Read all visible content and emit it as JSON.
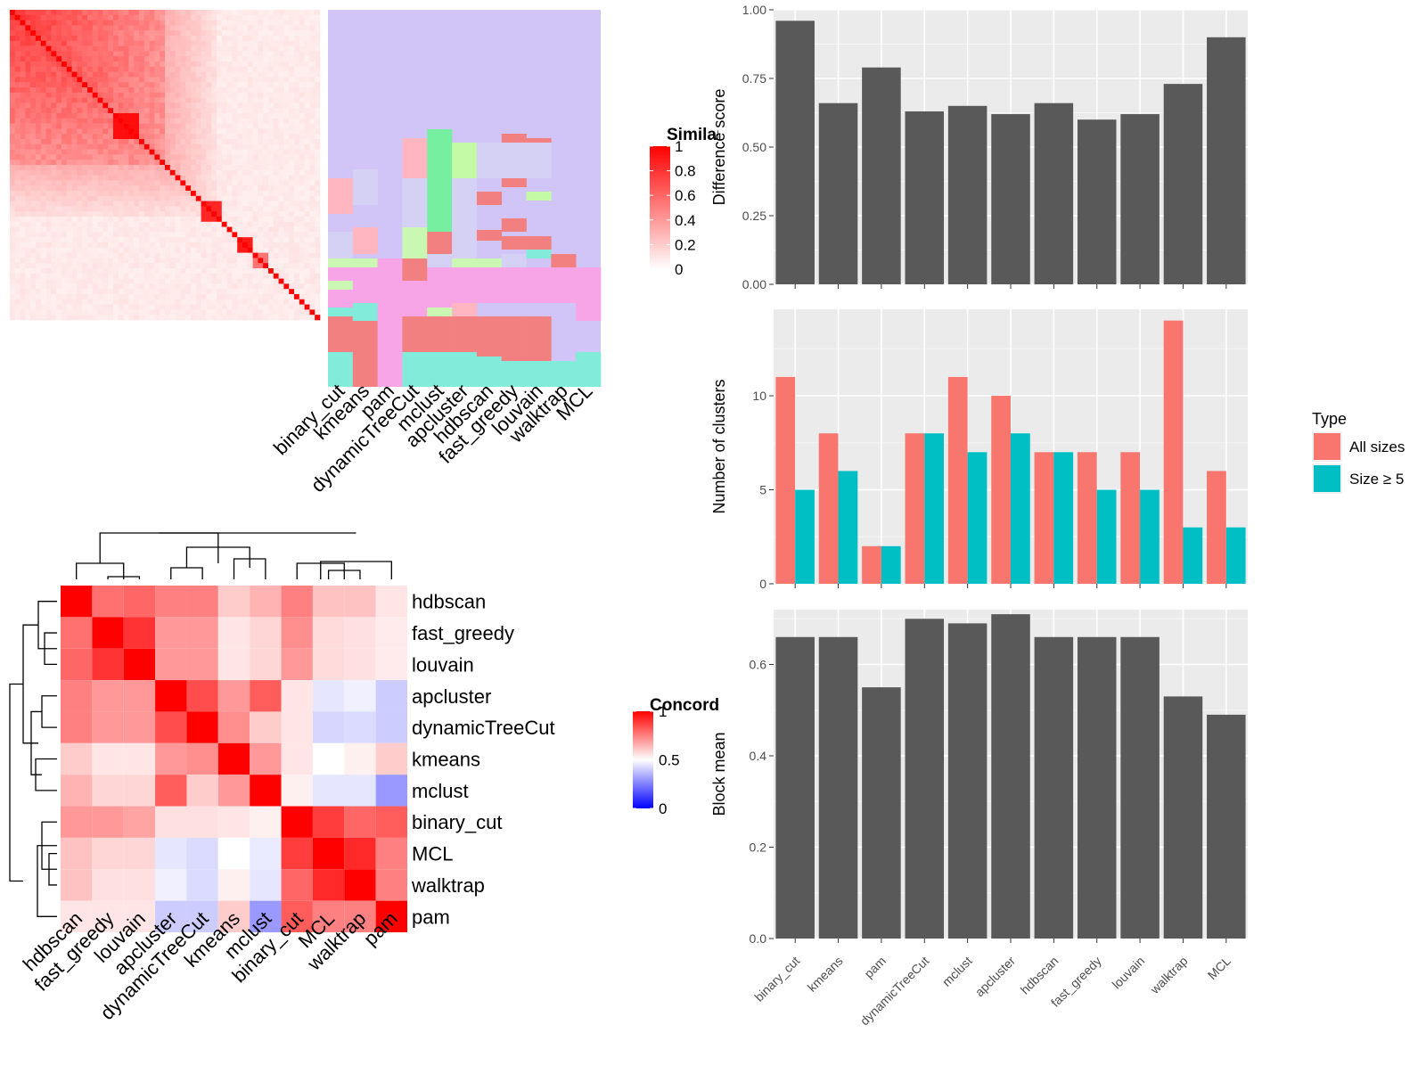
{
  "chart_data": [
    {
      "type": "heatmap",
      "title": "",
      "column_labels": [
        "binary_cut",
        "kmeans",
        "pam",
        "dynamicTreeCut",
        "mclust",
        "apcluster",
        "hdbscan",
        "fast_greedy",
        "louvain",
        "walktrap",
        "MCL"
      ],
      "legend": {
        "title": "Similarity",
        "ticks": [
          "1",
          "0.8",
          "0.6",
          "0.4",
          "0.2",
          "0"
        ],
        "range": [
          0,
          1
        ],
        "low_color": "#ffffff",
        "high_color": "#ff0000"
      },
      "cluster_colors": [
        "#ffb6c1",
        "#caf8b2",
        "#76f0a0",
        "#d5d1f4",
        "#f28080",
        "#f8a5e8",
        "#82ebd9",
        "#f5c6d8",
        "#c4f9a6"
      ],
      "base_color": "#d1c4f7"
    },
    {
      "type": "heatmap",
      "title": "",
      "labels": [
        "hdbscan",
        "fast_greedy",
        "louvain",
        "apcluster",
        "dynamicTreeCut",
        "kmeans",
        "mclust",
        "binary_cut",
        "MCL",
        "walktrap",
        "pam"
      ],
      "values": [
        [
          1.0,
          0.78,
          0.8,
          0.75,
          0.75,
          0.6,
          0.65,
          0.75,
          0.62,
          0.62,
          0.55
        ],
        [
          0.78,
          1.0,
          0.9,
          0.7,
          0.7,
          0.55,
          0.58,
          0.72,
          0.57,
          0.56,
          0.54
        ],
        [
          0.8,
          0.9,
          1.0,
          0.7,
          0.7,
          0.55,
          0.58,
          0.7,
          0.57,
          0.56,
          0.54
        ],
        [
          0.75,
          0.7,
          0.7,
          1.0,
          0.85,
          0.7,
          0.82,
          0.55,
          0.45,
          0.47,
          0.4
        ],
        [
          0.75,
          0.7,
          0.7,
          0.85,
          1.0,
          0.72,
          0.6,
          0.55,
          0.42,
          0.43,
          0.4
        ],
        [
          0.6,
          0.55,
          0.55,
          0.7,
          0.72,
          1.0,
          0.7,
          0.55,
          0.5,
          0.53,
          0.6
        ],
        [
          0.65,
          0.58,
          0.58,
          0.82,
          0.6,
          0.7,
          1.0,
          0.53,
          0.45,
          0.45,
          0.3
        ],
        [
          0.7,
          0.7,
          0.68,
          0.56,
          0.56,
          0.55,
          0.53,
          1.0,
          0.88,
          0.8,
          0.82
        ],
        [
          0.62,
          0.58,
          0.58,
          0.45,
          0.43,
          0.5,
          0.46,
          0.88,
          1.0,
          0.92,
          0.75
        ],
        [
          0.62,
          0.56,
          0.56,
          0.47,
          0.43,
          0.53,
          0.45,
          0.8,
          0.92,
          1.0,
          0.75
        ],
        [
          0.55,
          0.55,
          0.55,
          0.4,
          0.4,
          0.6,
          0.3,
          0.82,
          0.75,
          0.75,
          1.0
        ]
      ],
      "legend": {
        "title": "Concordance",
        "ticks": [
          "1",
          "0.5",
          "0"
        ],
        "range": [
          0,
          1
        ],
        "low_color": "#0000ff",
        "mid_color": "#ffffff",
        "high_color": "#ff0000"
      }
    },
    {
      "type": "bar",
      "categories": [
        "binary_cut",
        "kmeans",
        "pam",
        "dynamicTreeCut",
        "mclust",
        "apcluster",
        "hdbscan",
        "fast_greedy",
        "louvain",
        "walktrap",
        "MCL"
      ],
      "values": [
        0.96,
        0.66,
        0.79,
        0.63,
        0.65,
        0.62,
        0.66,
        0.6,
        0.62,
        0.73,
        0.9
      ],
      "xlabel": "",
      "ylabel": "Difference score",
      "ylim": [
        0,
        1.0
      ],
      "yticks": [
        "0.00",
        "0.25",
        "0.50",
        "0.75",
        "1.00"
      ],
      "color": "#595959"
    },
    {
      "type": "bar",
      "categories": [
        "binary_cut",
        "kmeans",
        "pam",
        "dynamicTreeCut",
        "mclust",
        "apcluster",
        "hdbscan",
        "fast_greedy",
        "louvain",
        "walktrap",
        "MCL"
      ],
      "series": [
        {
          "name": "All sizes",
          "values": [
            11,
            8,
            2,
            8,
            11,
            10,
            7,
            7,
            7,
            14,
            6
          ],
          "color": "#f8766d"
        },
        {
          "name": "Size ≥ 5",
          "values": [
            5,
            6,
            2,
            8,
            7,
            8,
            7,
            5,
            5,
            3,
            3
          ],
          "color": "#00bfc4"
        }
      ],
      "xlabel": "",
      "ylabel": "Number of clusters",
      "ylim": [
        0,
        14.6
      ],
      "yticks": [
        "0",
        "5",
        "10"
      ],
      "legend": {
        "title": "Type",
        "position": "right"
      }
    },
    {
      "type": "bar",
      "categories": [
        "binary_cut",
        "kmeans",
        "pam",
        "dynamicTreeCut",
        "mclust",
        "apcluster",
        "hdbscan",
        "fast_greedy",
        "louvain",
        "walktrap",
        "MCL"
      ],
      "values": [
        0.66,
        0.66,
        0.55,
        0.7,
        0.69,
        0.71,
        0.66,
        0.66,
        0.66,
        0.53,
        0.49
      ],
      "xlabel": "",
      "ylabel": "Block mean",
      "ylim": [
        0,
        0.72
      ],
      "yticks": [
        "0.0",
        "0.2",
        "0.4",
        "0.6"
      ],
      "color": "#595959"
    }
  ]
}
